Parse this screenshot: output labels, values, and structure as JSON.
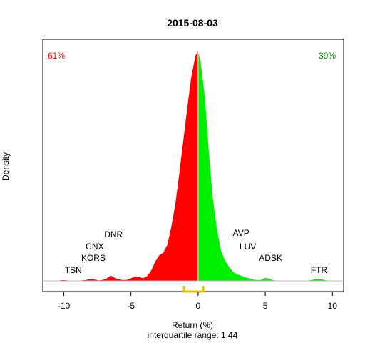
{
  "chart_data": {
    "type": "area",
    "title": "2015-08-03",
    "xlabel": "Return (%)",
    "ylabel": "Density",
    "subtitle": "interquartile range: 1.44",
    "xlim": [
      -10.7,
      10.9
    ],
    "x_ticks": [
      "-10",
      "-5",
      "0",
      "5",
      "10"
    ],
    "x_tick_values": [
      -10,
      -5,
      0,
      5,
      10
    ],
    "negative_share": "61%",
    "positive_share": "39%",
    "colors": {
      "negative": "#ff0000",
      "positive": "#00ee00",
      "iqr": "#e6c200"
    },
    "iqr_range": [
      -1.05,
      0.39
    ],
    "density_curve": {
      "x": [
        -10.7,
        -10.4,
        -10.1,
        -9.8,
        -9.5,
        -9.2,
        -8.9,
        -8.6,
        -8.3,
        -8.0,
        -7.7,
        -7.4,
        -7.1,
        -6.8,
        -6.5,
        -6.2,
        -5.9,
        -5.6,
        -5.3,
        -5.0,
        -4.7,
        -4.4,
        -4.1,
        -3.8,
        -3.5,
        -3.2,
        -2.9,
        -2.6,
        -2.3,
        -2.0,
        -1.7,
        -1.4,
        -1.1,
        -0.8,
        -0.5,
        -0.2,
        0.0,
        0.2,
        0.5,
        0.8,
        1.1,
        1.4,
        1.7,
        2.0,
        2.3,
        2.6,
        2.9,
        3.2,
        3.5,
        3.8,
        4.1,
        4.4,
        4.7,
        5.0,
        5.3,
        5.6,
        5.9,
        6.2,
        6.5,
        6.8,
        7.1,
        7.4,
        7.7,
        8.0,
        8.3,
        8.6,
        8.9,
        9.2,
        9.5,
        9.8,
        10.1,
        10.4,
        10.9
      ],
      "y": [
        0,
        0.001,
        0.003,
        0.002,
        0.001,
        0,
        0.001,
        0.002,
        0.004,
        0.008,
        0.005,
        0.002,
        0.004,
        0.01,
        0.02,
        0.012,
        0.006,
        0.003,
        0.004,
        0.01,
        0.018,
        0.015,
        0.01,
        0.018,
        0.04,
        0.075,
        0.1,
        0.11,
        0.14,
        0.21,
        0.3,
        0.42,
        0.55,
        0.68,
        0.8,
        0.88,
        0.9,
        0.85,
        0.72,
        0.5,
        0.32,
        0.2,
        0.12,
        0.08,
        0.055,
        0.035,
        0.025,
        0.02,
        0.014,
        0.01,
        0.005,
        0.003,
        0.004,
        0.012,
        0.008,
        0.002,
        0.001,
        0,
        0,
        0,
        0,
        0,
        0,
        0,
        0.002,
        0.005,
        0.008,
        0.006,
        0.002,
        0,
        0,
        0,
        0
      ]
    },
    "annotations": [
      {
        "label": "TSN",
        "x": -9.3
      },
      {
        "label": "KORS",
        "x": -7.8
      },
      {
        "label": "CNX",
        "x": -7.7
      },
      {
        "label": "DNR",
        "x": -6.3
      },
      {
        "label": "AVP",
        "x": 3.2
      },
      {
        "label": "LUV",
        "x": 3.7
      },
      {
        "label": "ADSK",
        "x": 5.4
      },
      {
        "label": "FTR",
        "x": 9.0
      }
    ]
  }
}
